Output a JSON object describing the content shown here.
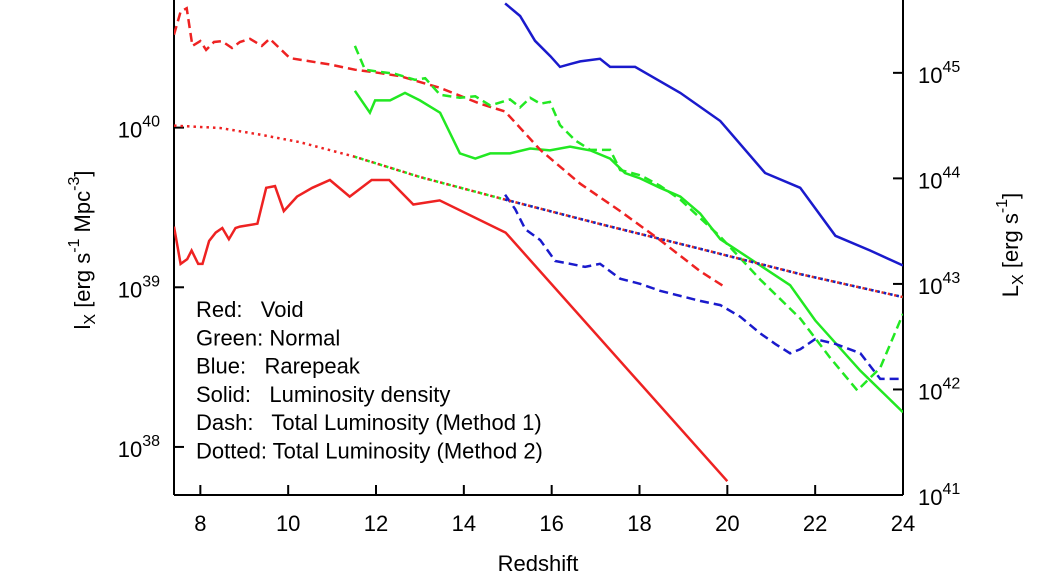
{
  "chart_data": {
    "type": "line",
    "xlabel": "Redshift",
    "ylabel": "l_X [erg s^-1 Mpc^-3]",
    "y2label": "L_X [erg s^-1]",
    "xlim": [
      7.4,
      24
    ],
    "xticks": [
      8,
      10,
      12,
      14,
      16,
      18,
      20,
      22,
      24
    ],
    "ylim": [
      5e+37,
      6.3e+40
    ],
    "ylog": true,
    "yticks": [
      {
        "value": 1e+38,
        "label": "10^38"
      },
      {
        "value": 1e+39,
        "label": "10^39"
      },
      {
        "value": 1e+40,
        "label": "10^40"
      }
    ],
    "y2lim": [
      1e+41,
      4.9e+45
    ],
    "y2log": true,
    "y2ticks": [
      {
        "value": 1e+41,
        "label": "10^41"
      },
      {
        "value": 1e+42,
        "label": "10^42"
      },
      {
        "value": 1e+43,
        "label": "10^43"
      },
      {
        "value": 1e+44,
        "label": "10^44"
      },
      {
        "value": 1e+45,
        "label": "10^45"
      }
    ],
    "legend_text": [
      "Red:   Void",
      "Green: Normal",
      "Blue:   Rarepeak",
      "Solid:   Luminosity density",
      "Dash:   Total Luminosity (Method 1)",
      "Dotted: Total Luminosity (Method 2)"
    ],
    "series": [
      {
        "color": "#ee2222",
        "style": "solid",
        "axis": "y",
        "x": [
          7.4,
          7.55,
          7.7,
          7.8,
          7.95,
          8.05,
          8.2,
          8.35,
          8.5,
          8.65,
          8.8,
          8.9,
          9.3,
          9.5,
          9.7,
          9.9,
          10.2,
          10.55,
          10.95,
          11.4,
          11.9,
          12.3,
          12.85,
          13.45,
          14.95,
          20
        ],
        "values": [
          2.4e+39,
          1.4e+39,
          1.5e+39,
          1.7e+39,
          1.4e+39,
          1.4e+39,
          1.95e+39,
          2.2e+39,
          2.35e+39,
          2e+39,
          2.35e+39,
          2.4e+39,
          2.5e+39,
          4.2e+39,
          4.3e+39,
          3e+39,
          3.7e+39,
          4.2e+39,
          4.7e+39,
          3.7e+39,
          4.7e+39,
          4.7e+39,
          3.3e+39,
          3.5e+39,
          2.2e+39,
          6.1e+37
        ]
      },
      {
        "color": "#22e822",
        "style": "solid",
        "axis": "y",
        "x": [
          11.52,
          11.86,
          11.98,
          12.32,
          12.66,
          13.0,
          13.46,
          13.91,
          14.26,
          14.6,
          15.05,
          15.51,
          15.96,
          16.42,
          16.88,
          17.33,
          17.67,
          18.02,
          18.47,
          18.93,
          19.38,
          19.84,
          20.75,
          21.43,
          22.0,
          23.03,
          24
        ],
        "values": [
          1.7e+40,
          1.24e+40,
          1.48e+40,
          1.48e+40,
          1.65e+40,
          1.48e+40,
          1.24e+40,
          6.9e+39,
          6.4e+39,
          6.9e+39,
          6.9e+39,
          7.4e+39,
          7.2e+39,
          7.6e+39,
          7.2e+39,
          6.4e+39,
          5.2e+39,
          4.8e+39,
          4.2e+39,
          3.7e+39,
          2.9e+39,
          2e+39,
          1.37e+39,
          1.03e+39,
          6.2e+38,
          3e+38,
          1.65e+38
        ]
      },
      {
        "color": "#1a1acc",
        "style": "solid",
        "axis": "y",
        "x": [
          14.94,
          15.28,
          15.62,
          15.97,
          16.19,
          16.42,
          16.65,
          17.1,
          17.33,
          17.9,
          18.93,
          19.84,
          20.86,
          21.66,
          22.46,
          23.25,
          24
        ],
        "values": [
          6e+40,
          5e+40,
          3.5e+40,
          2.8e+40,
          2.4e+40,
          2.5e+40,
          2.6e+40,
          2.7e+40,
          2.4e+40,
          2.4e+40,
          1.65e+40,
          1.1e+40,
          5.2e+39,
          4.2e+39,
          2.1e+39,
          1.7e+39,
          1.37e+39
        ]
      },
      {
        "color": "#ee2222",
        "style": "dash",
        "axis": "y2",
        "x": [
          7.4,
          7.55,
          7.69,
          7.82,
          8.0,
          8.13,
          8.31,
          8.49,
          8.72,
          8.9,
          9.13,
          9.4,
          9.58,
          10.04,
          10.95,
          11.52,
          11.91,
          12.55,
          13.46,
          14.37,
          14.94,
          15.74,
          16.65,
          17.56,
          18.47,
          19.38,
          19.95
        ],
        "values": [
          2.3e+45,
          3.8e+45,
          4.1e+45,
          1.8e+45,
          2e+45,
          1.65e+45,
          1.96e+45,
          2e+45,
          1.72e+45,
          1.96e+45,
          2.1e+45,
          1.8e+45,
          2.1e+45,
          1.38e+45,
          1.2e+45,
          1.07e+45,
          1.02e+45,
          9.3e+44,
          7.2e+44,
          5.1e+44,
          4.3e+44,
          1.86e+44,
          8.9e+43,
          4.9e+43,
          2.6e+43,
          1.32e+43,
          9.3e+42
        ]
      },
      {
        "color": "#22e822",
        "style": "dash",
        "axis": "y2",
        "x": [
          11.52,
          11.75,
          12.09,
          12.43,
          12.89,
          13.12,
          13.46,
          13.91,
          14.26,
          14.6,
          15.05,
          15.28,
          15.51,
          15.74,
          15.96,
          16.19,
          16.53,
          16.88,
          17.33,
          17.56,
          18.02,
          18.47,
          18.93,
          19.84,
          20.75,
          21.66,
          22.34,
          22.96,
          23.48,
          24
        ],
        "values": [
          1.8e+45,
          1.07e+45,
          1.02e+45,
          9.8e+44,
          8.6e+44,
          8.9e+44,
          6.2e+44,
          5.8e+44,
          6e+44,
          4.9e+44,
          5.6e+44,
          4.7e+44,
          5.8e+44,
          5.1e+44,
          5.3e+44,
          3.2e+44,
          2.3e+44,
          1.86e+44,
          1.86e+44,
          1.2e+44,
          1.07e+44,
          8.5e+43,
          6.3e+43,
          2.8e+43,
          1.1e+43,
          4.7e+42,
          2e+42,
          9.8e+41,
          1.6e+42,
          5.2e+42
        ]
      },
      {
        "color": "#1a1acc",
        "style": "dash",
        "axis": "y2",
        "x": [
          14.94,
          15.17,
          15.4,
          15.74,
          16.08,
          16.42,
          16.76,
          17.1,
          17.56,
          18.02,
          18.47,
          19.38,
          19.84,
          20.29,
          20.75,
          21.09,
          21.43,
          21.66,
          22.0,
          22.46,
          23.03,
          23.48,
          24
        ],
        "values": [
          7e+43,
          5.1e+43,
          3.3e+43,
          2.6e+43,
          1.65e+43,
          1.55e+43,
          1.45e+43,
          1.55e+43,
          1.12e+43,
          1e+43,
          8.6e+42,
          6.9e+42,
          6.3e+42,
          4.9e+42,
          3.4e+42,
          2.7e+42,
          2.2e+42,
          2.4e+42,
          3e+42,
          2.7e+42,
          2.2e+42,
          1.26e+42,
          1.26e+42
        ]
      },
      {
        "color": "#ee2222",
        "style": "dotted",
        "axis": "y2",
        "x": [
          7.4,
          8.45,
          9.36,
          10.27,
          11.52,
          13.0,
          14.94,
          17.1,
          19.38,
          21.66,
          24
        ],
        "values": [
          3.16e+44,
          3e+44,
          2.6e+44,
          2.2e+44,
          1.6e+44,
          1.03e+44,
          6.3e+43,
          3.7e+43,
          2.15e+43,
          1.24e+43,
          7.5e+42
        ]
      },
      {
        "color": "#22e822",
        "style": "dotted",
        "axis": "y2",
        "x": [
          11.52,
          13.0,
          14.94,
          17.1,
          19.38,
          21.66,
          24
        ],
        "values": [
          1.6e+44,
          1.03e+44,
          6.3e+43,
          3.7e+43,
          2.15e+43,
          1.24e+43,
          7.5e+42
        ]
      },
      {
        "color": "#1a1acc",
        "style": "dotted",
        "axis": "y2",
        "x": [
          14.94,
          17.1,
          19.38,
          21.66,
          24
        ],
        "values": [
          6.3e+43,
          3.7e+43,
          2.15e+43,
          1.24e+43,
          7.5e+42
        ]
      }
    ]
  }
}
